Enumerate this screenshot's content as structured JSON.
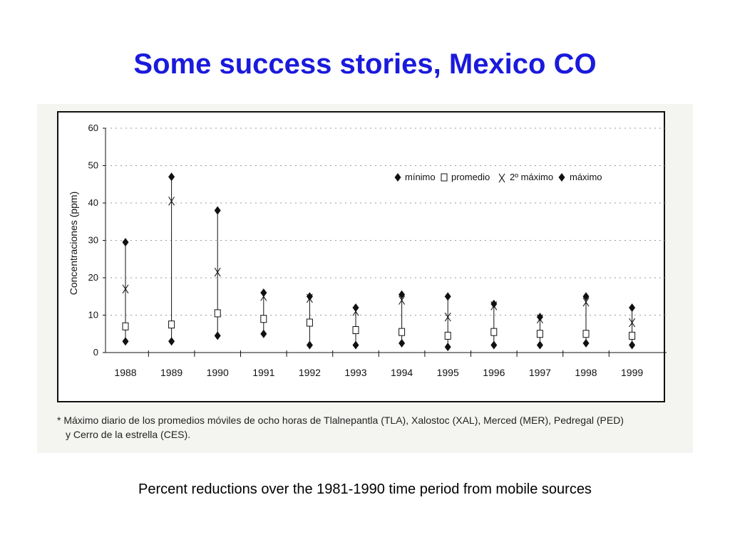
{
  "slide": {
    "title": "Some success stories, Mexico CO",
    "caption": "Percent reductions over the 1981-1990 time period from mobile sources"
  },
  "figure": {
    "footnote_line1": "* Máximo diario de los promedios móviles de ocho horas de Tlalnepantla (TLA), Xalostoc (XAL), Merced (MER), Pedregal (PED)",
    "footnote_line2": "y Cerro de la estrella (CES)."
  },
  "colors": {
    "title": "#1a1adc",
    "marker": "#111111",
    "grid": "#9a9a9a"
  },
  "chart_data": {
    "type": "scatter",
    "title": "",
    "xlabel": "",
    "ylabel": "Concentraciones (ppm)",
    "ylim": [
      0,
      60
    ],
    "yticks": [
      0,
      10,
      20,
      30,
      40,
      50,
      60
    ],
    "grid": "horizontal dotted",
    "legend_position": "top-right",
    "categories": [
      "1988",
      "1989",
      "1990",
      "1991",
      "1992",
      "1993",
      "1994",
      "1995",
      "1996",
      "1997",
      "1998",
      "1999"
    ],
    "series": [
      {
        "name": "mínimo",
        "marker": "filled-diamond",
        "values": [
          3,
          3,
          4.5,
          5,
          2,
          2,
          2.5,
          1.5,
          2,
          2,
          2.5,
          2
        ]
      },
      {
        "name": "promedio",
        "marker": "open-square",
        "values": [
          7,
          7.5,
          10.5,
          9,
          8,
          6,
          5.5,
          4.5,
          5.5,
          5,
          5,
          4.5
        ]
      },
      {
        "name": "2º máximo",
        "marker": "x",
        "values": [
          17,
          40.5,
          21.5,
          15,
          14.5,
          11,
          14,
          9.5,
          12.5,
          9,
          13.5,
          8
        ]
      },
      {
        "name": "máximo",
        "marker": "filled-diamond",
        "values": [
          29.5,
          47,
          38,
          16,
          15,
          12,
          15.5,
          15,
          13,
          9.5,
          15,
          12
        ]
      }
    ]
  }
}
